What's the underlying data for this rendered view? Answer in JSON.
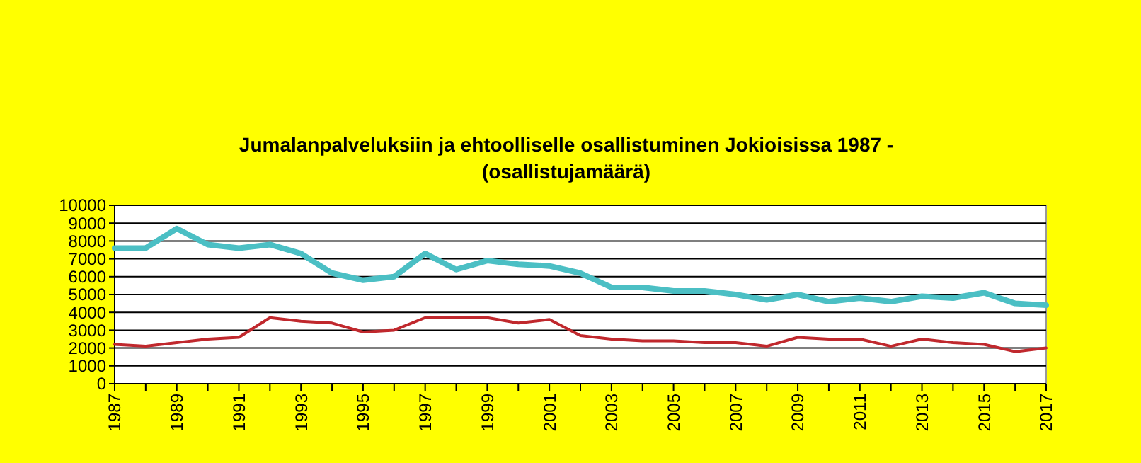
{
  "chart_data": {
    "type": "line",
    "title": "Jumalanpalveluksiin ja ehtoolliselle osallistuminen Jokioisissa 1987 -\n(osallistujamäärä)",
    "x": [
      1987,
      1988,
      1989,
      1990,
      1991,
      1992,
      1993,
      1994,
      1995,
      1996,
      1997,
      1998,
      1999,
      2000,
      2001,
      2002,
      2003,
      2004,
      2005,
      2006,
      2007,
      2008,
      2009,
      2010,
      2011,
      2012,
      2013,
      2014,
      2015,
      2016,
      2017
    ],
    "series": [
      {
        "color": "#4bbfc4",
        "values": [
          7600,
          7600,
          8700,
          7800,
          7600,
          7800,
          7300,
          6200,
          5800,
          6000,
          7300,
          6400,
          6900,
          6700,
          6600,
          6200,
          5400,
          5400,
          5200,
          5200,
          5000,
          4700,
          5000,
          4600,
          4800,
          4600,
          4900,
          4800,
          5100,
          4500,
          4400
        ]
      },
      {
        "color": "#c0282d",
        "values": [
          2200,
          2100,
          2300,
          2500,
          2600,
          3700,
          3500,
          3400,
          2900,
          3000,
          3700,
          3700,
          3700,
          3400,
          3600,
          2700,
          2500,
          2400,
          2400,
          2300,
          2300,
          2100,
          2600,
          2500,
          2500,
          2100,
          2500,
          2300,
          2200,
          1800,
          2000
        ]
      }
    ],
    "xlim": [
      1987,
      2017
    ],
    "xticks": [
      1987,
      {
        "value": 1988,
        "label": null
      },
      1989,
      {
        "value": 1990,
        "label": null
      },
      1991,
      {
        "value": 1992,
        "label": null
      },
      1993,
      {
        "value": 1994,
        "label": null
      },
      1995,
      {
        "value": 1996,
        "label": null
      },
      1997,
      {
        "value": 1998,
        "label": null
      },
      1999,
      {
        "value": 2000,
        "label": null
      },
      2001,
      {
        "value": 2002,
        "label": null
      },
      2003,
      {
        "value": 2004,
        "label": null
      },
      2005,
      {
        "value": 2006,
        "label": null
      },
      2007,
      {
        "value": 2008,
        "label": null
      },
      2009,
      {
        "value": 2010,
        "label": null
      },
      2011,
      {
        "value": 2012,
        "label": null
      },
      2013,
      {
        "value": 2014,
        "label": null
      },
      2015,
      {
        "value": 2016,
        "label": null
      },
      2017
    ],
    "ylim": [
      0,
      10000
    ],
    "yticks": [
      0,
      1000,
      2000,
      3000,
      4000,
      5000,
      6000,
      7000,
      8000,
      9000,
      10000
    ],
    "grid": "y",
    "marker": "none",
    "line_style": "solid"
  }
}
